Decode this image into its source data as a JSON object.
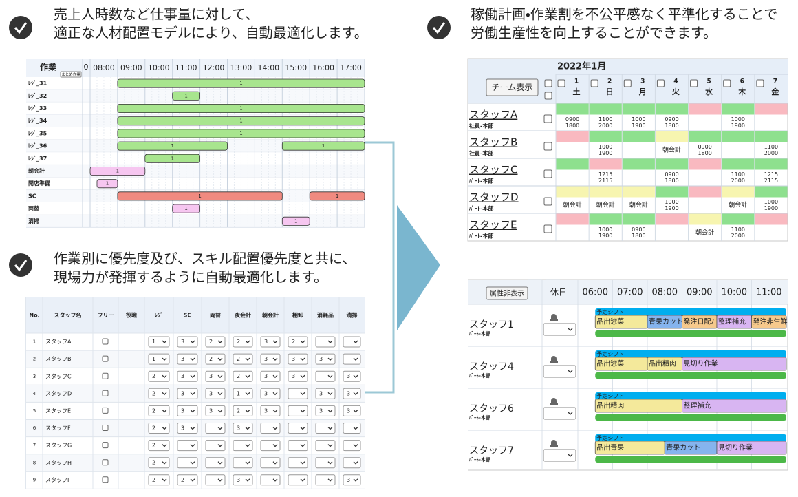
{
  "sections": [
    {
      "lines": [
        "売上人時数など仕事量に対して、",
        "適正な人材配置モデルにより、自動最適化します。"
      ]
    },
    {
      "lines": [
        "作業別に優先度及び、スキル配置優先度と共に、",
        "現場力が発揮するように自動最適化します。"
      ]
    },
    {
      "lines": [
        "稼働計画・作業割を不公平感なく平準化することで",
        "労働生産性を向上することができます。"
      ]
    }
  ],
  "gantt": {
    "header_label": "作業",
    "summary_button": "まとめ作業",
    "zero_label": "0",
    "hours": [
      "08:00",
      "09:00",
      "10:00",
      "11:00",
      "12:00",
      "13:00",
      "14:00",
      "15:00",
      "16:00",
      "17:00"
    ],
    "xlim": [
      8,
      18
    ],
    "rows": [
      {
        "name": "ﾚｼﾞ_31",
        "bars": [
          {
            "start": 9,
            "end": 18,
            "label": "1",
            "color": "#a8e58e"
          }
        ]
      },
      {
        "name": "ﾚｼﾞ_32",
        "bars": [
          {
            "start": 11,
            "end": 12,
            "label": "1",
            "color": "#a8e58e"
          }
        ]
      },
      {
        "name": "ﾚｼﾞ_33",
        "bars": [
          {
            "start": 9,
            "end": 18,
            "label": "1",
            "color": "#a8e58e"
          }
        ]
      },
      {
        "name": "ﾚｼﾞ_34",
        "bars": [
          {
            "start": 9,
            "end": 18,
            "label": "1",
            "color": "#a8e58e"
          }
        ]
      },
      {
        "name": "ﾚｼﾞ_35",
        "bars": [
          {
            "start": 9,
            "end": 18,
            "label": "1",
            "color": "#a8e58e"
          }
        ]
      },
      {
        "name": "ﾚｼﾞ_36",
        "bars": [
          {
            "start": 9,
            "end": 13,
            "label": "1",
            "color": "#a8e58e"
          },
          {
            "start": 15,
            "end": 18,
            "label": "1",
            "color": "#a8e58e"
          }
        ]
      },
      {
        "name": "ﾚｼﾞ_37",
        "bars": [
          {
            "start": 10,
            "end": 12,
            "label": "1",
            "color": "#a8e58e"
          }
        ]
      },
      {
        "name": "朝会計",
        "bars": [
          {
            "start": 8,
            "end": 10,
            "label": "1",
            "color": "#f6c6f0"
          }
        ]
      },
      {
        "name": "開店準備",
        "bars": [
          {
            "start": 8.25,
            "end": 9,
            "label": "1",
            "color": "#f6c6f0"
          }
        ]
      },
      {
        "name": "SC",
        "bars": [
          {
            "start": 9,
            "end": 15,
            "label": "1",
            "color": "#f08a80"
          },
          {
            "start": 16,
            "end": 18,
            "label": "1",
            "color": "#f08a80"
          }
        ]
      },
      {
        "name": "両替",
        "bars": [
          {
            "start": 11,
            "end": 12,
            "label": "1",
            "color": "#f6c6f0"
          }
        ]
      },
      {
        "name": "清掃",
        "bars": [
          {
            "start": 15,
            "end": 16,
            "label": "1",
            "color": "#f6c6f0"
          }
        ]
      }
    ]
  },
  "skill_table": {
    "columns": [
      "No.",
      "スタッフ名",
      "フリー",
      "役職",
      "ﾚｼﾞ",
      "SC",
      "両替",
      "夜会計",
      "朝会計",
      "棚卸",
      "消耗品",
      "清掃"
    ],
    "rows": [
      {
        "no": 1,
        "name": "スタッフA",
        "skills": [
          1,
          3,
          2,
          2,
          3,
          2,
          null,
          null
        ]
      },
      {
        "no": 2,
        "name": "スタッフB",
        "skills": [
          1,
          3,
          2,
          2,
          3,
          3,
          3,
          null
        ]
      },
      {
        "no": 3,
        "name": "スタッフC",
        "skills": [
          2,
          3,
          3,
          2,
          3,
          3,
          null,
          3
        ]
      },
      {
        "no": 4,
        "name": "スタッフD",
        "skills": [
          2,
          3,
          3,
          1,
          3,
          null,
          3,
          3
        ]
      },
      {
        "no": 5,
        "name": "スタッフE",
        "skills": [
          2,
          3,
          3,
          2,
          3,
          null,
          3,
          3
        ]
      },
      {
        "no": 6,
        "name": "スタッフF",
        "skills": [
          2,
          3,
          null,
          3,
          null,
          null,
          null,
          null
        ]
      },
      {
        "no": 7,
        "name": "スタッフG",
        "skills": [
          2,
          null,
          null,
          null,
          null,
          null,
          null,
          null
        ]
      },
      {
        "no": 8,
        "name": "スタッフH",
        "skills": [
          2,
          null,
          null,
          null,
          null,
          null,
          null,
          null
        ]
      },
      {
        "no": 9,
        "name": "スタッフI",
        "skills": [
          2,
          2,
          null,
          3,
          null,
          null,
          null,
          3
        ]
      }
    ]
  },
  "calendar": {
    "title": "2022年1月",
    "button": "チーム表示",
    "days": [
      {
        "num": 1,
        "dow": "土",
        "color": "#4a7fe0"
      },
      {
        "num": 2,
        "dow": "日",
        "color": "#f05a6a"
      },
      {
        "num": 3,
        "dow": "月",
        "color": "#222222"
      },
      {
        "num": 4,
        "dow": "火",
        "color": "#222222"
      },
      {
        "num": 5,
        "dow": "水",
        "color": "#222222"
      },
      {
        "num": 6,
        "dow": "木",
        "color": "#222222"
      },
      {
        "num": 7,
        "dow": "金",
        "color": "#222222"
      }
    ],
    "staff": [
      {
        "name": "スタッフA",
        "dept": "社員-本部",
        "cells": [
          {
            "top": "#8ee08e",
            "text": [
              "0900",
              "1800"
            ]
          },
          {
            "top": "#8ee08e",
            "text": [
              "1100",
              "2000"
            ]
          },
          {
            "top": "#8ee08e",
            "text": [
              "1000",
              "1900"
            ]
          },
          {
            "top": "#8ee08e",
            "text": [
              "0900",
              "1800"
            ]
          },
          {
            "top": "#f9b9c0",
            "text": []
          },
          {
            "top": "#8ee08e",
            "text": [
              "1000",
              "1900"
            ]
          },
          {
            "top": "#f9b9c0",
            "text": []
          }
        ]
      },
      {
        "name": "スタッフB",
        "dept": "社員-本部",
        "cells": [
          {
            "top": "#f9b9c0",
            "text": []
          },
          {
            "top": "#8ee08e",
            "text": [
              "1000",
              "1900"
            ]
          },
          {
            "top": "#8ee08e",
            "text": []
          },
          {
            "top": "#f7f5b0",
            "text": [
              "朝会計"
            ]
          },
          {
            "top": "#8ee08e",
            "text": [
              "0900",
              "1800"
            ]
          },
          {
            "top": "#8ee08e",
            "text": []
          },
          {
            "top": "#8ee08e",
            "text": [
              "1100",
              "2000"
            ]
          }
        ]
      },
      {
        "name": "スタッフC",
        "dept": "ﾊﾟｰﾄ-本部",
        "cells": [
          {
            "top": "#8ee08e",
            "text": []
          },
          {
            "top": "#f9b9c0",
            "text": [
              "1215",
              "2115"
            ]
          },
          {
            "top": "#8ee08e",
            "text": []
          },
          {
            "top": "#8ee08e",
            "text": [
              "0900",
              "1800"
            ]
          },
          {
            "top": "#f9b9c0",
            "text": []
          },
          {
            "top": "#8ee08e",
            "text": [
              "1100",
              "2000"
            ]
          },
          {
            "top": "#8ee08e",
            "text": [
              "1215",
              "2115"
            ]
          }
        ]
      },
      {
        "name": "スタッフD",
        "dept": "ﾊﾟｰﾄ-本部",
        "cells": [
          {
            "top": "#f7f5b0",
            "text": [
              "朝会計"
            ]
          },
          {
            "top": "#f7f5b0",
            "text": [
              "朝会計"
            ]
          },
          {
            "top": "#f7f5b0",
            "text": [
              "朝会計"
            ]
          },
          {
            "top": "#8ee08e",
            "text": [
              "1000",
              "1900"
            ]
          },
          {
            "top": "#f9b9c0",
            "text": []
          },
          {
            "top": "#f7f5b0",
            "text": [
              "朝会計"
            ]
          },
          {
            "top": "#8ee08e",
            "text": [
              "1000",
              "1900"
            ]
          }
        ]
      },
      {
        "name": "スタッフE",
        "dept": "ﾊﾟｰﾄ-本部",
        "cells": [
          {
            "top": "#f9b9c0",
            "text": []
          },
          {
            "top": "#8ee08e",
            "text": [
              "1000",
              "1900"
            ]
          },
          {
            "top": "#8ee08e",
            "text": [
              "0900",
              "1800"
            ]
          },
          {
            "top": "#f9b9c0",
            "text": []
          },
          {
            "top": "#f7f5b0",
            "text": [
              "朝会計"
            ]
          },
          {
            "top": "#8ee08e",
            "text": [
              "1100",
              "2000"
            ]
          },
          {
            "top": "#f9b9c0",
            "text": []
          }
        ]
      }
    ]
  },
  "shift": {
    "button": "属性非表示",
    "holiday": "休日",
    "hours": [
      "06:00",
      "07:00",
      "08:00",
      "09:00",
      "10:00",
      "11:00"
    ],
    "xlim": [
      6,
      12
    ],
    "plan_label": "予定シフト",
    "staff": [
      {
        "name": "スタッフ1",
        "dept": "ﾊﾟｰﾄ-本部",
        "plan": {
          "start": 6.5,
          "end": 12
        },
        "bar": {
          "start": 6.5,
          "end": 12
        },
        "tasks": [
          {
            "name": "品出惣菜",
            "start": 6.5,
            "end": 8,
            "color": "#f4e99b"
          },
          {
            "name": "青果カット",
            "start": 8,
            "end": 9,
            "color": "#85b4ee"
          },
          {
            "name": "発注日配ﾉ",
            "start": 9,
            "end": 10,
            "color": "#f6c98c"
          },
          {
            "name": "整理補充",
            "start": 10,
            "end": 11,
            "color": "#d8b5f2"
          },
          {
            "name": "発注非生鮮",
            "start": 11,
            "end": 12,
            "color": "#f6c98c"
          }
        ]
      },
      {
        "name": "スタッフ4",
        "dept": "ﾊﾟｰﾄ-本部",
        "plan": {
          "start": 6.5,
          "end": 12
        },
        "bar": {
          "start": 6.5,
          "end": 12
        },
        "tasks": [
          {
            "name": "品出惣菜",
            "start": 6.5,
            "end": 8,
            "color": "#f4e99b"
          },
          {
            "name": "品出精肉",
            "start": 8,
            "end": 9,
            "color": "#f4e99b"
          },
          {
            "name": "見切り作業",
            "start": 9,
            "end": 12,
            "color": "#d8b5f2"
          }
        ]
      },
      {
        "name": "スタッフ6",
        "dept": "ﾊﾟｰﾄ-本部",
        "plan": {
          "start": 6.5,
          "end": 12
        },
        "bar": {
          "start": 6.5,
          "end": 12
        },
        "tasks": [
          {
            "name": "品出精肉",
            "start": 6.5,
            "end": 9,
            "color": "#f4e99b"
          },
          {
            "name": "整理補充",
            "start": 9,
            "end": 12,
            "color": "#d8b5f2"
          }
        ]
      },
      {
        "name": "スタッフ7",
        "dept": "ﾊﾟｰﾄ-本部",
        "plan": {
          "start": 6.5,
          "end": 12
        },
        "bar": {
          "start": 6.5,
          "end": 12
        },
        "tasks": [
          {
            "name": "品出青果",
            "start": 6.5,
            "end": 8.5,
            "color": "#f4e99b"
          },
          {
            "name": "青果カット",
            "start": 8.5,
            "end": 10,
            "color": "#85b4ee"
          },
          {
            "name": "見切り作業",
            "start": 10,
            "end": 12,
            "color": "#d8b5f2"
          }
        ]
      }
    ]
  }
}
